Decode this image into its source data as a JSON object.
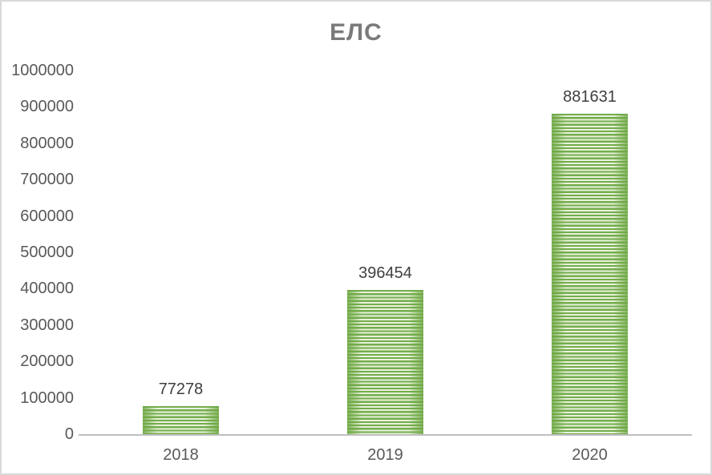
{
  "chart_data": {
    "type": "bar",
    "title": "ЕЛС",
    "categories": [
      "2018",
      "2019",
      "2020"
    ],
    "values": [
      77278,
      396454,
      881631
    ],
    "data_labels": [
      "77278",
      "396454",
      "881631"
    ],
    "xlabel": "",
    "ylabel": "",
    "ylim": [
      0,
      1000000
    ],
    "ytick_step": 100000,
    "ytick_labels": [
      "1000000",
      "900000",
      "800000",
      "700000",
      "600000",
      "500000",
      "400000",
      "300000",
      "200000",
      "100000",
      "0"
    ],
    "grid": false,
    "legend_position": "none",
    "data_labels_shown": true,
    "colors": {
      "bar_stripe_green": "#74AD4B",
      "bar_stripe_light": "#E9F2DE",
      "bar_edge_green": "#6FA845",
      "axis_line": "#BFBFBF",
      "tick_label": "#595959",
      "data_label": "#3F3F3F",
      "title": "#7A7A7A",
      "frame_border": "#D9D9D9",
      "background": "#FFFFFF"
    }
  }
}
